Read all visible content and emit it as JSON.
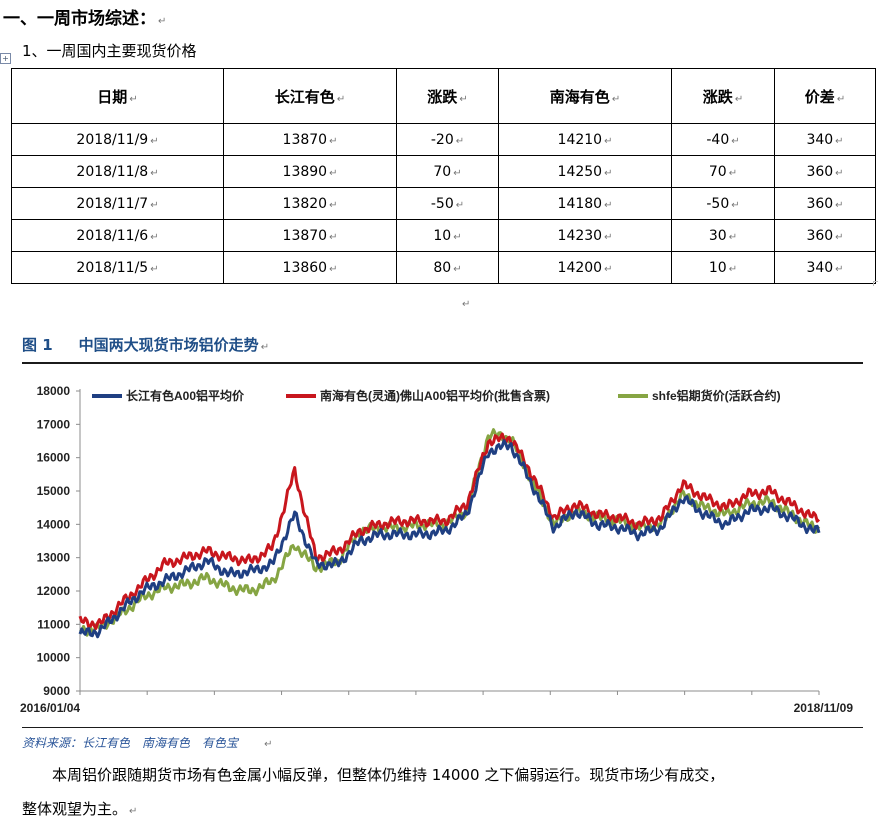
{
  "heading": {
    "section": "一、一周市场综述：",
    "sub": "1、一周国内主要现货价格"
  },
  "table": {
    "headers": [
      "日期",
      "长江有色",
      "涨跌",
      "南海有色",
      "涨跌",
      "价差"
    ],
    "rows": [
      [
        "2018/11/9",
        "13870",
        "-20",
        "14210",
        "-40",
        "340"
      ],
      [
        "2018/11/8",
        "13890",
        "70",
        "14250",
        "70",
        "360"
      ],
      [
        "2018/11/7",
        "13820",
        "-50",
        "14180",
        "-50",
        "360"
      ],
      [
        "2018/11/6",
        "13870",
        "10",
        "14230",
        "30",
        "360"
      ],
      [
        "2018/11/5",
        "13860",
        "80",
        "14200",
        "10",
        "340"
      ]
    ]
  },
  "figure": {
    "number": "图 1",
    "title": "中国两大现货市场铝价走势"
  },
  "chart_data": {
    "type": "line",
    "title": "",
    "x_start_label": "2016/01/04",
    "x_end_label": "2018/11/09",
    "ylim": [
      9000,
      18000
    ],
    "yticks": [
      "9000",
      "10000",
      "11000",
      "12000",
      "13000",
      "14000",
      "15000",
      "16000",
      "17000",
      "18000"
    ],
    "x_dates": [
      "2016-01",
      "2016-02",
      "2016-03",
      "2016-04",
      "2016-05",
      "2016-06",
      "2016-07",
      "2016-08",
      "2016-09",
      "2016-10",
      "2016-11",
      "2016-12",
      "2017-01",
      "2017-02",
      "2017-03",
      "2017-04",
      "2017-05",
      "2017-06",
      "2017-07",
      "2017-08",
      "2017-09",
      "2017-10",
      "2017-11",
      "2017-12",
      "2018-01",
      "2018-02",
      "2018-03",
      "2018-04",
      "2018-05",
      "2018-06",
      "2018-07",
      "2018-08",
      "2018-09",
      "2018-10",
      "2018-11"
    ],
    "legend_position": "top",
    "series": [
      {
        "name": "长江有色A00铝平均价",
        "color": "#1f3f82",
        "values": [
          10700,
          10800,
          11400,
          12000,
          12300,
          12600,
          12900,
          12500,
          12600,
          12800,
          14300,
          12800,
          12800,
          13500,
          13700,
          13700,
          13700,
          13800,
          14300,
          16200,
          16400,
          15200,
          13900,
          14400,
          14000,
          13900,
          13700,
          13900,
          14800,
          14300,
          14000,
          14400,
          14500,
          14200,
          13800
        ]
      },
      {
        "name": "南海有色(灵通)佛山A00铝平均价(批售含票)",
        "color": "#c8161d",
        "values": [
          11100,
          11000,
          11600,
          12200,
          12800,
          13000,
          13200,
          13000,
          12900,
          13300,
          15600,
          13000,
          13200,
          13800,
          14000,
          14100,
          14100,
          14100,
          14600,
          16500,
          16600,
          15500,
          14200,
          14600,
          14300,
          14200,
          14000,
          14200,
          15200,
          14800,
          14500,
          14900,
          15000,
          14600,
          14200
        ]
      },
      {
        "name": "shfe铝期货价(活跃合约)",
        "color": "#86a543",
        "values": [
          10800,
          10900,
          11300,
          11800,
          12100,
          12200,
          12400,
          12100,
          12000,
          12300,
          13400,
          12700,
          12900,
          13800,
          13900,
          13900,
          14000,
          14000,
          14400,
          16700,
          16600,
          15300,
          14000,
          14400,
          14200,
          14100,
          13900,
          14000,
          14900,
          14500,
          14300,
          14600,
          14700,
          14300,
          13900
        ]
      }
    ]
  },
  "source": {
    "label": "资料来源：",
    "items": [
      "长江有色",
      "南海有色",
      "有色宝"
    ]
  },
  "paragraph": {
    "line1": "本周铝价跟随期货市场有色金属小幅反弹，但整体仍维持 14000 之下偏弱运行。现货市场少有成交，",
    "line2": "整体观望为主。"
  }
}
